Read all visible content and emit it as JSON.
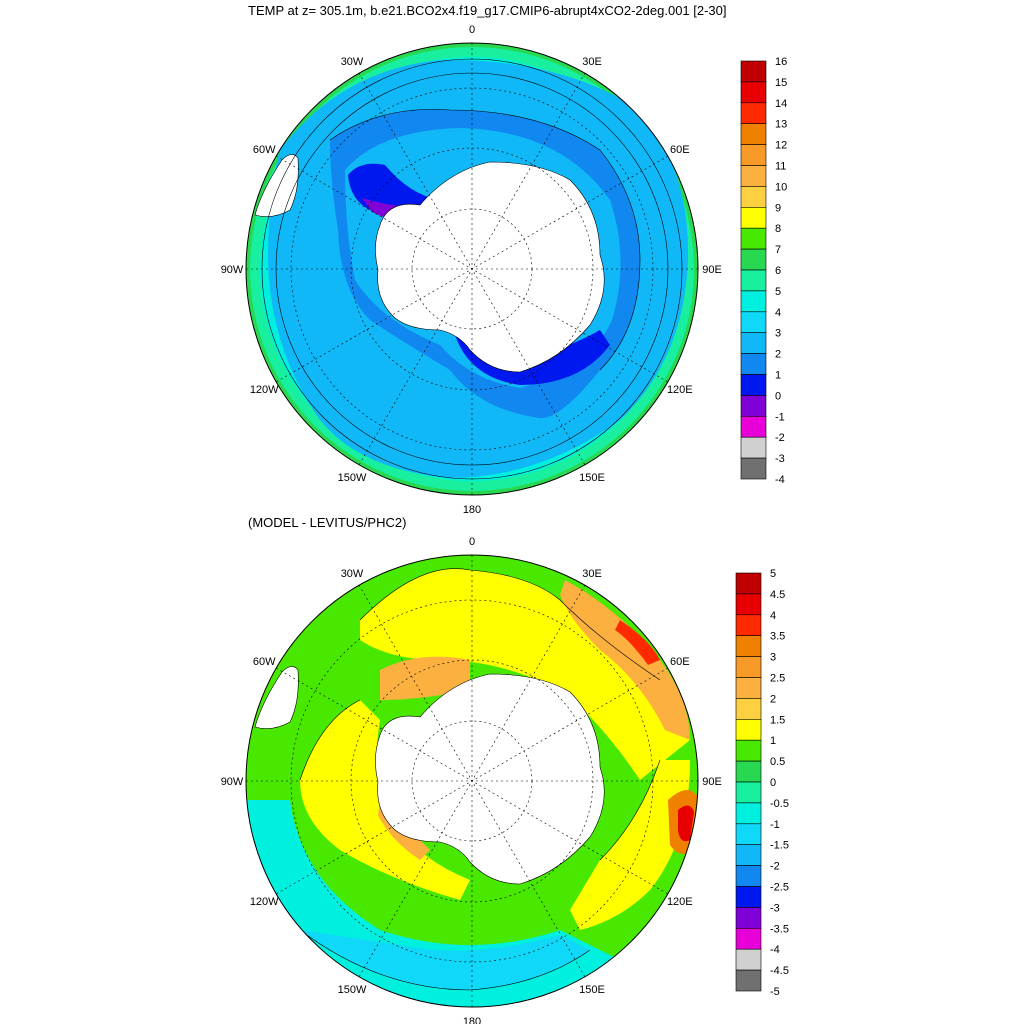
{
  "figure": {
    "title": "TEMP at z= 305.1m, b.e21.BCO2x4.f19_g17.CMIP6-abrupt4xCO2-2deg.001 [2-30]",
    "subtitle": "(MODEL - LEVITUS/PHC2)"
  },
  "panels": [
    {
      "id": "top",
      "lon_labels": [
        {
          "text": "0",
          "lon": 0
        },
        {
          "text": "30E",
          "lon": 30
        },
        {
          "text": "60E",
          "lon": 60
        },
        {
          "text": "90E",
          "lon": 90
        },
        {
          "text": "120E",
          "lon": 120
        },
        {
          "text": "150E",
          "lon": 150
        },
        {
          "text": "180",
          "lon": 180
        },
        {
          "text": "150W",
          "lon": -150
        },
        {
          "text": "120W",
          "lon": -120
        },
        {
          "text": "90W",
          "lon": -90
        },
        {
          "text": "60W",
          "lon": -60
        },
        {
          "text": "30W",
          "lon": -30
        }
      ],
      "colorbar": {
        "labels": [
          "16",
          "15",
          "14",
          "13",
          "12",
          "11",
          "10",
          "9",
          "8",
          "7",
          "6",
          "5",
          "4",
          "3",
          "2",
          "1",
          "0",
          "-1",
          "-2",
          "-3",
          "-4"
        ],
        "colors": [
          "#c00000",
          "#e80000",
          "#ff2a00",
          "#f08000",
          "#f89a28",
          "#fbb040",
          "#fcd040",
          "#ffff00",
          "#48e800",
          "#28d850",
          "#18f0a0",
          "#00f0e0",
          "#10d8f8",
          "#10b8f8",
          "#1088f0",
          "#0018f0",
          "#8000d8",
          "#e800d8",
          "#d0d0d0",
          "#707070"
        ]
      }
    },
    {
      "id": "bottom",
      "lon_labels": [
        {
          "text": "0",
          "lon": 0
        },
        {
          "text": "30E",
          "lon": 30
        },
        {
          "text": "60E",
          "lon": 60
        },
        {
          "text": "90E",
          "lon": 90
        },
        {
          "text": "120E",
          "lon": 120
        },
        {
          "text": "150E",
          "lon": 150
        },
        {
          "text": "180",
          "lon": 180
        },
        {
          "text": "150W",
          "lon": -150
        },
        {
          "text": "120W",
          "lon": -120
        },
        {
          "text": "90W",
          "lon": -90
        },
        {
          "text": "60W",
          "lon": -60
        },
        {
          "text": "30W",
          "lon": -30
        }
      ],
      "colorbar": {
        "labels": [
          "5",
          "4.5",
          "4",
          "3.5",
          "3",
          "2.5",
          "2",
          "1.5",
          "1",
          "0.5",
          "0",
          "-0.5",
          "-1",
          "-1.5",
          "-2",
          "-2.5",
          "-3",
          "-3.5",
          "-4",
          "-4.5",
          "-5"
        ],
        "colors": [
          "#c00000",
          "#e80000",
          "#ff2a00",
          "#f08000",
          "#f89a28",
          "#fbb040",
          "#fcd040",
          "#ffff00",
          "#48e800",
          "#28d850",
          "#18f0a0",
          "#00f0e0",
          "#10d8f8",
          "#10b8f8",
          "#1088f0",
          "#0018f0",
          "#8000d8",
          "#e800d8",
          "#d0d0d0",
          "#707070"
        ]
      }
    }
  ]
}
